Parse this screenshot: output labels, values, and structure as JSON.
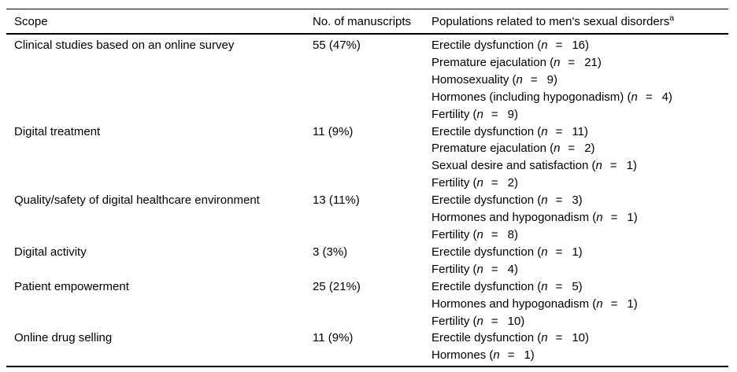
{
  "table": {
    "n_symbol": "n",
    "equals_sign": "=",
    "columns": [
      {
        "label": "Scope"
      },
      {
        "label": "No. of manuscripts"
      },
      {
        "label": "Populations related to men's sexual disorders",
        "superscript": "a"
      }
    ],
    "rows": [
      {
        "scope": "Clinical studies based on an online survey",
        "manuscripts": "55 (47%)",
        "populations": [
          {
            "label": "Erectile dysfunction",
            "n": "16"
          },
          {
            "label": "Premature ejaculation",
            "n": "21"
          },
          {
            "label": "Homosexuality",
            "n": "9"
          },
          {
            "label": "Hormones (including hypogonadism)",
            "n": "4"
          },
          {
            "label": "Fertility",
            "n": "9"
          }
        ]
      },
      {
        "scope": "Digital treatment",
        "manuscripts": "11 (9%)",
        "populations": [
          {
            "label": "Erectile dysfunction",
            "n": "11"
          },
          {
            "label": "Premature ejaculation",
            "n": "2"
          },
          {
            "label": "Sexual desire and satisfaction",
            "n": "1"
          },
          {
            "label": "Fertility",
            "n": "2"
          }
        ]
      },
      {
        "scope": "Quality/safety of digital healthcare environment",
        "manuscripts": "13 (11%)",
        "populations": [
          {
            "label": "Erectile dysfunction",
            "n": "3"
          },
          {
            "label": "Hormones and hypogonadism",
            "n": "1"
          },
          {
            "label": "Fertility",
            "n": "8"
          }
        ]
      },
      {
        "scope": "Digital activity",
        "manuscripts": "3 (3%)",
        "populations": [
          {
            "label": "Erectile dysfunction",
            "n": "1"
          },
          {
            "label": "Fertility",
            "n": "4"
          }
        ]
      },
      {
        "scope": "Patient empowerment",
        "manuscripts": "25 (21%)",
        "populations": [
          {
            "label": "Erectile dysfunction",
            "n": "5"
          },
          {
            "label": "Hormones and hypogonadism",
            "n": "1"
          },
          {
            "label": "Fertility",
            "n": "10"
          }
        ]
      },
      {
        "scope": "Online drug selling",
        "manuscripts": "11 (9%)",
        "populations": [
          {
            "label": "Erectile dysfunction",
            "n": "10"
          },
          {
            "label": "Hormones",
            "n": "1"
          }
        ]
      }
    ]
  }
}
